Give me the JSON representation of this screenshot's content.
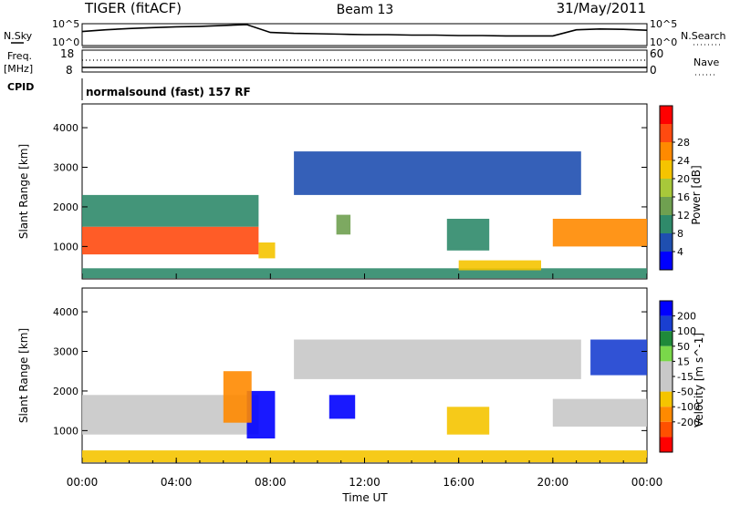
{
  "header": {
    "station": "TIGER (fitACF)",
    "beam": "Beam 13",
    "date": "31/May/2011"
  },
  "aux_panels": {
    "nsky_label": "N.Sky",
    "nsky_ticks": [
      "10^5",
      "10^0"
    ],
    "nsearch_label": "N.Search",
    "freq_label": "Freq.",
    "freq_unit": "[MHz]",
    "freq_ticks": [
      "18",
      "8"
    ],
    "nave_label": "Nave",
    "nave_ticks": [
      "60",
      "0"
    ],
    "cpid_label": "CPID",
    "cpid_text": "normalsound (fast) 157 RF"
  },
  "colors": {
    "power_scale": [
      "#0000ff",
      "#1f4fb0",
      "#2f8a6a",
      "#6fa050",
      "#a8c83a",
      "#f5c400",
      "#ff8a00",
      "#ff4a10",
      "#ff0000"
    ],
    "velocity_scale": [
      "#0000ff",
      "#1a3fd0",
      "#1f8a3a",
      "#7ad84a",
      "#c8c8c8",
      "#c8c8c8",
      "#f5c400",
      "#ff8a00",
      "#ff5000",
      "#ff0000"
    ],
    "line": "#000000"
  },
  "chart_data": [
    {
      "type": "line",
      "title": "N.Sky / N.Search",
      "ylabel": "N.Sky",
      "y_ticks": [
        "10^5",
        "10^0"
      ],
      "series": [
        {
          "name": "N.Sky",
          "x_hours": [
            0,
            1,
            2,
            3,
            4,
            5,
            6,
            7,
            8,
            9,
            10,
            11,
            12,
            13,
            14,
            15,
            16,
            17,
            18,
            19,
            20,
            21,
            22,
            23,
            24
          ],
          "log_values": [
            3.2,
            3.6,
            3.9,
            4.1,
            4.3,
            4.4,
            4.6,
            4.8,
            3.0,
            2.8,
            2.7,
            2.6,
            2.5,
            2.5,
            2.4,
            2.4,
            2.3,
            2.3,
            2.2,
            2.2,
            2.2,
            3.6,
            3.8,
            3.7,
            3.5
          ]
        }
      ]
    },
    {
      "type": "scatter",
      "title": "Freq. / Nave",
      "ylabel": "Freq. [MHz]",
      "y_ticks": [
        "18",
        "8"
      ],
      "y2_ticks": [
        "60",
        "0"
      ],
      "series": [
        {
          "name": "Freq.",
          "x_hours": [
            0,
            24
          ],
          "values": [
            9.0,
            9.0
          ]
        },
        {
          "name": "Nave",
          "x_hours": [
            0,
            24
          ],
          "values": [
            21,
            21
          ]
        }
      ]
    },
    {
      "type": "heatmap",
      "title": "",
      "ylabel": "Slant Range [km]",
      "yticks": [
        "1000",
        "2000",
        "3000",
        "4000"
      ],
      "ylim": [
        180,
        4600
      ],
      "xlim_hours": [
        0,
        24
      ],
      "colorbar_label": "Power [dB]",
      "colorbar_ticks": [
        "4",
        "8",
        "12",
        "16",
        "20",
        "24",
        "28"
      ],
      "echo_regions": [
        {
          "t0": 0.0,
          "t1": 7.5,
          "range0": 800,
          "range1": 1500,
          "value_db": 27
        },
        {
          "t0": 0.0,
          "t1": 7.5,
          "range0": 1500,
          "range1": 2300,
          "value_db": 12
        },
        {
          "t0": 7.5,
          "t1": 8.2,
          "range0": 700,
          "range1": 1100,
          "value_db": 22
        },
        {
          "t0": 10.8,
          "t1": 11.4,
          "range0": 1300,
          "range1": 1800,
          "value_db": 14
        },
        {
          "t0": 15.5,
          "t1": 17.3,
          "range0": 900,
          "range1": 1700,
          "value_db": 12
        },
        {
          "t0": 9.0,
          "t1": 21.2,
          "range0": 2300,
          "range1": 3400,
          "value_db": 8
        },
        {
          "t0": 20.0,
          "t1": 24.0,
          "range0": 1000,
          "range1": 1700,
          "value_db": 26
        },
        {
          "t0": 0.0,
          "t1": 24.0,
          "range0": 200,
          "range1": 450,
          "value_db": 9
        },
        {
          "t0": 16.0,
          "t1": 19.5,
          "range0": 400,
          "range1": 650,
          "value_db": 20
        }
      ]
    },
    {
      "type": "heatmap",
      "title": "",
      "ylabel": "Slant Range [km]",
      "yticks": [
        "1000",
        "2000",
        "3000",
        "4000"
      ],
      "ylim": [
        180,
        4600
      ],
      "xlim_hours": [
        0,
        24
      ],
      "xticks": [
        "00:00",
        "04:00",
        "08:00",
        "12:00",
        "16:00",
        "20:00",
        "00:00"
      ],
      "xlabel": "Time UT",
      "colorbar_label": "Velocity [m s^-1]",
      "colorbar_ticks": [
        "200",
        "100",
        "50",
        "15",
        "-15",
        "-50",
        "-100",
        "-200"
      ],
      "echo_regions": [
        {
          "t0": 0.0,
          "t1": 7.5,
          "range0": 900,
          "range1": 1900,
          "value_ms": 0
        },
        {
          "t0": 7.0,
          "t1": 8.2,
          "range0": 800,
          "range1": 2000,
          "value_ms": 220
        },
        {
          "t0": 6.0,
          "t1": 7.2,
          "range0": 1200,
          "range1": 2500,
          "value_ms": -80
        },
        {
          "t0": 10.5,
          "t1": 11.6,
          "range0": 1300,
          "range1": 1900,
          "value_ms": 200
        },
        {
          "t0": 9.0,
          "t1": 21.2,
          "range0": 2300,
          "range1": 3300,
          "value_ms": 0
        },
        {
          "t0": 15.5,
          "t1": 17.3,
          "range0": 900,
          "range1": 1600,
          "value_ms": -20
        },
        {
          "t0": 20.0,
          "t1": 24.0,
          "range0": 1100,
          "range1": 1800,
          "value_ms": 0
        },
        {
          "t0": 21.6,
          "t1": 24.0,
          "range0": 2400,
          "range1": 3300,
          "value_ms": 150
        },
        {
          "t0": 0.0,
          "t1": 24.0,
          "range0": 200,
          "range1": 500,
          "value_ms": -40
        }
      ]
    }
  ]
}
